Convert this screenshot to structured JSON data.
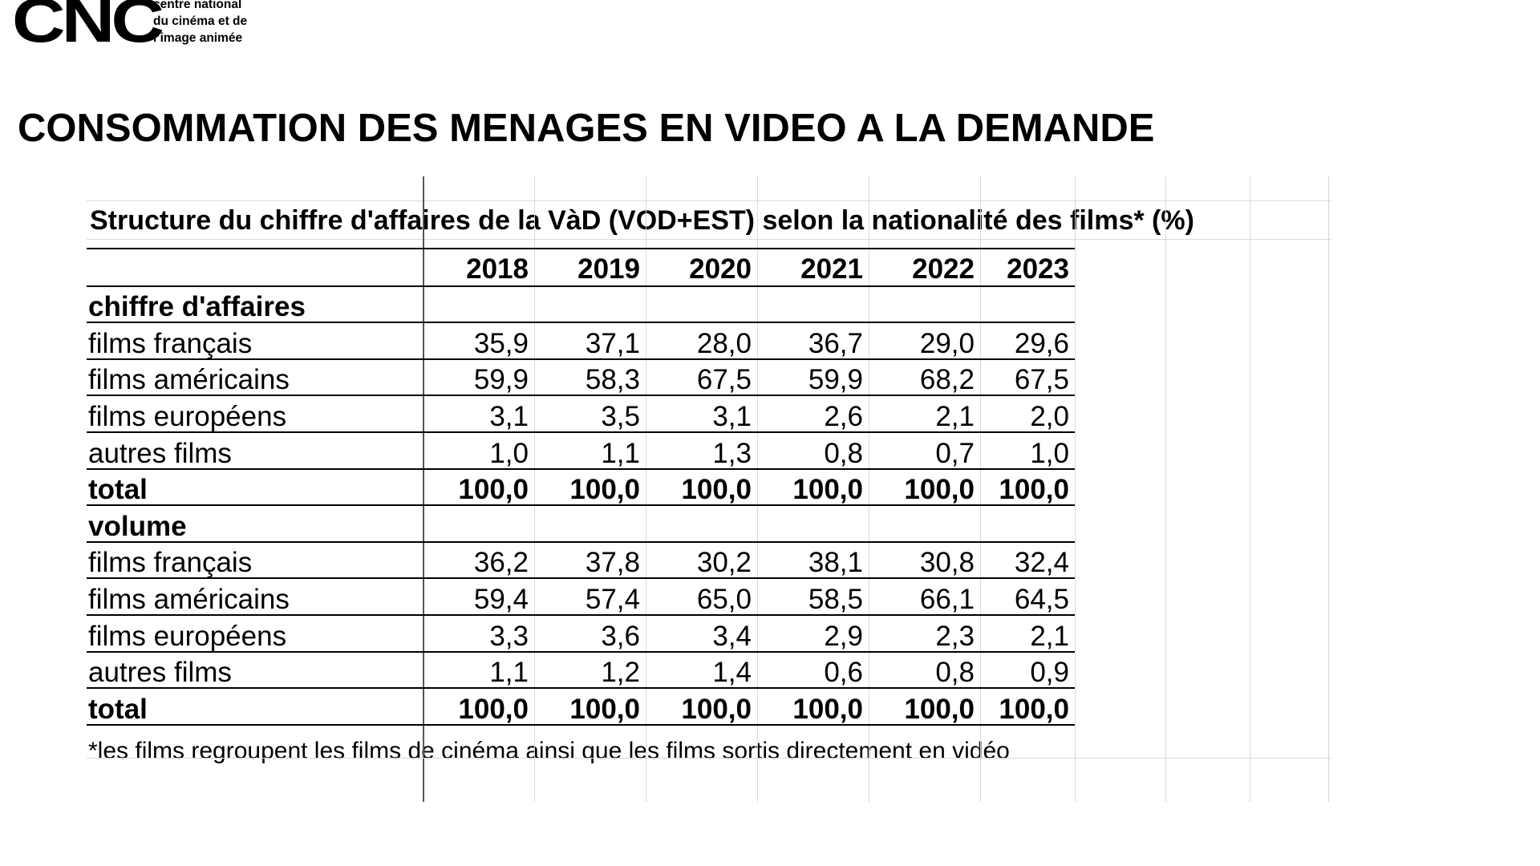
{
  "logo": {
    "mark": "CNC",
    "lines": [
      "centre national",
      "du cinéma et de",
      "l’image animée"
    ]
  },
  "title": "CONSOMMATION DES MENAGES EN VIDEO A LA DEMANDE",
  "table": {
    "subtitle": "Structure du chiffre d'affaires de la VàD (VOD+EST) selon la nationalité des films* (%)",
    "years": [
      "2018",
      "2019",
      "2020",
      "2021",
      "2022",
      "2023"
    ],
    "sections": [
      {
        "heading": "chiffre d'affaires",
        "rows": [
          {
            "label": "films français",
            "values": [
              "35,9",
              "37,1",
              "28,0",
              "36,7",
              "29,0",
              "29,6"
            ]
          },
          {
            "label": "films américains",
            "values": [
              "59,9",
              "58,3",
              "67,5",
              "59,9",
              "68,2",
              "67,5"
            ]
          },
          {
            "label": "films européens",
            "values": [
              "3,1",
              "3,5",
              "3,1",
              "2,6",
              "2,1",
              "2,0"
            ]
          },
          {
            "label": "autres films",
            "values": [
              "1,0",
              "1,1",
              "1,3",
              "0,8",
              "0,7",
              "1,0"
            ]
          },
          {
            "label": "total",
            "values": [
              "100,0",
              "100,0",
              "100,0",
              "100,0",
              "100,0",
              "100,0"
            ],
            "bold": true
          }
        ]
      },
      {
        "heading": "volume",
        "rows": [
          {
            "label": "films français",
            "values": [
              "36,2",
              "37,8",
              "30,2",
              "38,1",
              "30,8",
              "32,4"
            ]
          },
          {
            "label": "films américains",
            "values": [
              "59,4",
              "57,4",
              "65,0",
              "58,5",
              "66,1",
              "64,5"
            ]
          },
          {
            "label": "films européens",
            "values": [
              "3,3",
              "3,6",
              "3,4",
              "2,9",
              "2,3",
              "2,1"
            ]
          },
          {
            "label": "autres films",
            "values": [
              "1,1",
              "1,2",
              "1,4",
              "0,6",
              "0,8",
              "0,9"
            ]
          },
          {
            "label": "total",
            "values": [
              "100,0",
              "100,0",
              "100,0",
              "100,0",
              "100,0",
              "100,0"
            ],
            "bold": true
          }
        ]
      }
    ],
    "footnote": "*les films regroupent les films de cinéma ainsi que les films sortis directement en vidéo"
  }
}
